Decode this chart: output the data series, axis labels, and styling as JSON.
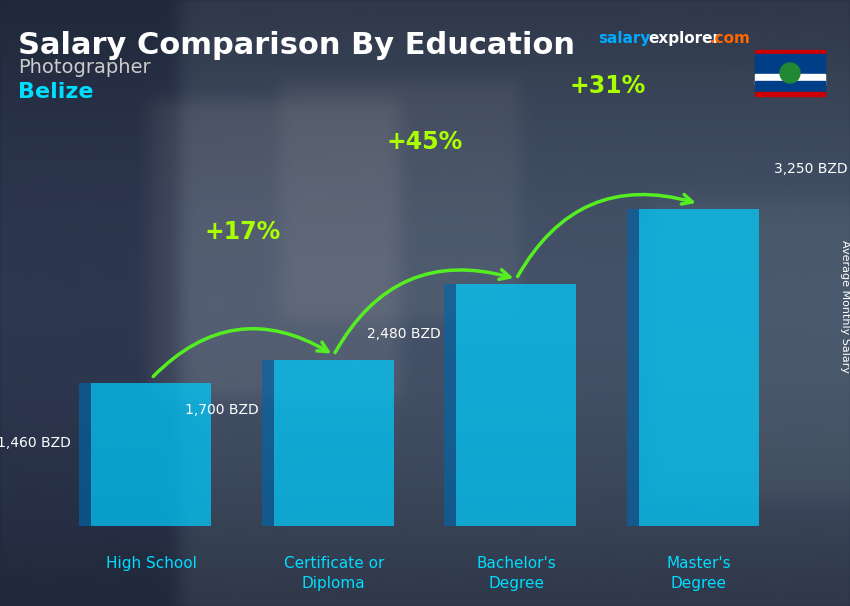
{
  "title": "Salary Comparison By Education",
  "subtitle_job": "Photographer",
  "subtitle_country": "Belize",
  "ylabel": "Average Monthly Salary",
  "categories": [
    "High School",
    "Certificate or\nDiploma",
    "Bachelor's\nDegree",
    "Master's\nDegree"
  ],
  "values": [
    1460,
    1700,
    2480,
    3250
  ],
  "value_labels": [
    "1,460 BZD",
    "1,700 BZD",
    "2,480 BZD",
    "3,250 BZD"
  ],
  "pct_changes": [
    "+17%",
    "+45%",
    "+31%"
  ],
  "bar_color": "#00ccff",
  "bar_alpha": 0.72,
  "title_color": "#ffffff",
  "subtitle_job_color": "#cccccc",
  "subtitle_country_color": "#00ddff",
  "ylabel_color": "#ffffff",
  "category_color": "#00ddff",
  "value_color": "#ffffff",
  "pct_color": "#aaff00",
  "arrow_color": "#55ee22",
  "brand_salary_color": "#00aaff",
  "brand_explorer_color": "#ffffff",
  "brand_com_color": "#ff6600",
  "ylim": [
    0,
    4200
  ],
  "bar_bottom": 0,
  "bg_colors": [
    "#4a5a70",
    "#5a6a80",
    "#6a7a8a",
    "#7a8a9a"
  ],
  "photo_overlay_alpha": 0.55
}
